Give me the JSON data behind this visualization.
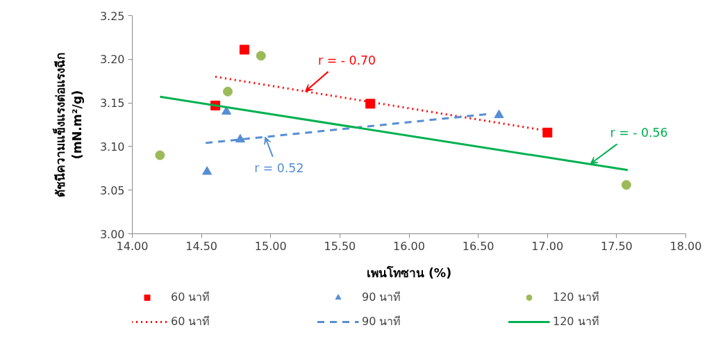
{
  "chart_data": {
    "type": "scatter",
    "xlabel": "เพนโทซาน (%)",
    "ylabel": "ดัชนีความแข็งแรงต่อแรงฉีก\n(mN.m²/g)",
    "xlim": [
      14.0,
      18.0
    ],
    "xticks": [
      {
        "value": 14,
        "label": "14.00"
      },
      {
        "value": 14.5,
        "label": "14.50"
      },
      {
        "value": 15,
        "label": "15.00"
      },
      {
        "value": 15.5,
        "label": "15.50"
      },
      {
        "value": 16,
        "label": "16.00"
      },
      {
        "value": 16.5,
        "label": "16.50"
      },
      {
        "value": 17,
        "label": "17.00"
      },
      {
        "value": 17.5,
        "label": "17.50"
      },
      {
        "value": 18,
        "label": "18.00"
      }
    ],
    "ylim": [
      3.0,
      3.25
    ],
    "yticks": [
      {
        "value": 3.0,
        "label": "3.00"
      },
      {
        "value": 3.05,
        "label": "3.05"
      },
      {
        "value": 3.1,
        "label": "3.10"
      },
      {
        "value": 3.15,
        "label": "3.15"
      },
      {
        "value": 3.2,
        "label": "3.20"
      },
      {
        "value": 3.25,
        "label": "3.25"
      }
    ],
    "grid": false,
    "legend": "bottom",
    "series": [
      {
        "name": "60 นาที",
        "type": "scatter",
        "marker": "square",
        "color": "#ff0000",
        "x": [
          14.6,
          14.81,
          15.72,
          17.0
        ],
        "values": [
          3.147,
          3.211,
          3.149,
          3.116
        ]
      },
      {
        "name": "90 นาที",
        "type": "scatter",
        "marker": "triangle",
        "color": "#558ed5",
        "x": [
          14.54,
          14.68,
          14.78,
          16.65
        ],
        "values": [
          3.071,
          3.14,
          3.108,
          3.136
        ]
      },
      {
        "name": "120 นาที",
        "type": "scatter",
        "marker": "circle",
        "color": "#9bbb59",
        "x": [
          14.2,
          14.69,
          14.93,
          17.57
        ],
        "values": [
          3.09,
          3.163,
          3.204,
          3.056
        ]
      },
      {
        "name": "60 นาที",
        "type": "line",
        "line_style": "dotted",
        "color": "#ff0000",
        "x": [
          14.6,
          16.96
        ],
        "values": [
          3.18,
          3.119
        ]
      },
      {
        "name": "90 นาที",
        "type": "line",
        "line_style": "dashed",
        "color": "#558ed5",
        "x": [
          14.53,
          16.56
        ],
        "values": [
          3.104,
          3.137
        ]
      },
      {
        "name": "120 นาที",
        "type": "line",
        "line_style": "solid",
        "color": "#00b050",
        "x": [
          14.2,
          17.58
        ],
        "values": [
          3.157,
          3.073
        ]
      }
    ],
    "annotations": [
      {
        "text": "r = - 0.70",
        "x": 15.25,
        "y": 3.163
      },
      {
        "text": "r = 0.52",
        "x": 14.96,
        "y": 3.111
      },
      {
        "text": "r = - 0.56",
        "x": 17.31,
        "y": 3.08
      }
    ]
  }
}
